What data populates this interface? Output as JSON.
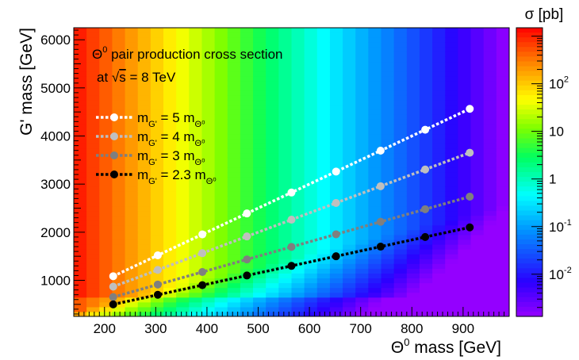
{
  "chart_data": {
    "type": "heatmap",
    "title_line1": "pair production cross section",
    "title_particle": "Θ",
    "title_particle_sup": "0",
    "title_line2_prefix": "at ",
    "title_line2_sqrt": "√",
    "title_line2_s": "s",
    "title_line2_suffix": " = 8 TeV",
    "xlabel_particle": "Θ",
    "xlabel_sup": "0",
    "xlabel_rest": " mass [GeV]",
    "ylabel": "G' mass [GeV]",
    "colorbar_label": "σ [pb]",
    "xlim": [
      140,
      990
    ],
    "ylim": [
      250,
      6250
    ],
    "x_ticks": [
      200,
      300,
      400,
      500,
      600,
      700,
      800,
      900
    ],
    "y_ticks": [
      1000,
      2000,
      3000,
      4000,
      5000,
      6000
    ],
    "z_scale": "log",
    "zlim": [
      0.0013,
      1500
    ],
    "colorbar_ticks": [
      {
        "value": 100,
        "base": "10",
        "exp": "2"
      },
      {
        "value": 10,
        "base": "10",
        "exp": ""
      },
      {
        "value": 1,
        "base": "1",
        "exp": ""
      },
      {
        "value": 0.1,
        "base": "10",
        "exp": "-1"
      },
      {
        "value": 0.01,
        "base": "10",
        "exp": "-2"
      }
    ],
    "heatmap_model": "cross section decreases with Θ⁰ mass; suppressed at low G' mass",
    "series": [
      {
        "name_prefix": "m",
        "name_sub": "G'",
        "name_mid": " = 5 m",
        "name_sub2": "Θ⁰",
        "color": "#ffffff",
        "x": [
          217,
          304,
          391,
          478,
          565,
          652,
          739,
          826,
          913
        ],
        "y": [
          1085,
          1520,
          1955,
          2390,
          2825,
          3260,
          3695,
          4130,
          4565
        ]
      },
      {
        "name_prefix": "m",
        "name_sub": "G'",
        "name_mid": " = 4 m",
        "name_sub2": "Θ⁰",
        "color": "#bfbfbf",
        "x": [
          217,
          304,
          391,
          478,
          565,
          652,
          739,
          826,
          913
        ],
        "y": [
          868,
          1216,
          1564,
          1912,
          2260,
          2608,
          2956,
          3304,
          3652
        ]
      },
      {
        "name_prefix": "m",
        "name_sub": "G'",
        "name_mid": " = 3 m",
        "name_sub2": "Θ⁰",
        "color": "#7f7f7f",
        "x": [
          217,
          304,
          391,
          478,
          565,
          652,
          739,
          826,
          913
        ],
        "y": [
          651,
          912,
          1173,
          1434,
          1695,
          1956,
          2217,
          2478,
          2739
        ]
      },
      {
        "name_prefix": "m",
        "name_sub": "G'",
        "name_mid": " = 2.3 m",
        "name_sub2": "Θ⁰",
        "color": "#000000",
        "x": [
          217,
          304,
          391,
          478,
          565,
          652,
          739,
          826,
          913
        ],
        "y": [
          499,
          699,
          899,
          1100,
          1300,
          1500,
          1700,
          1900,
          2100
        ]
      }
    ]
  }
}
